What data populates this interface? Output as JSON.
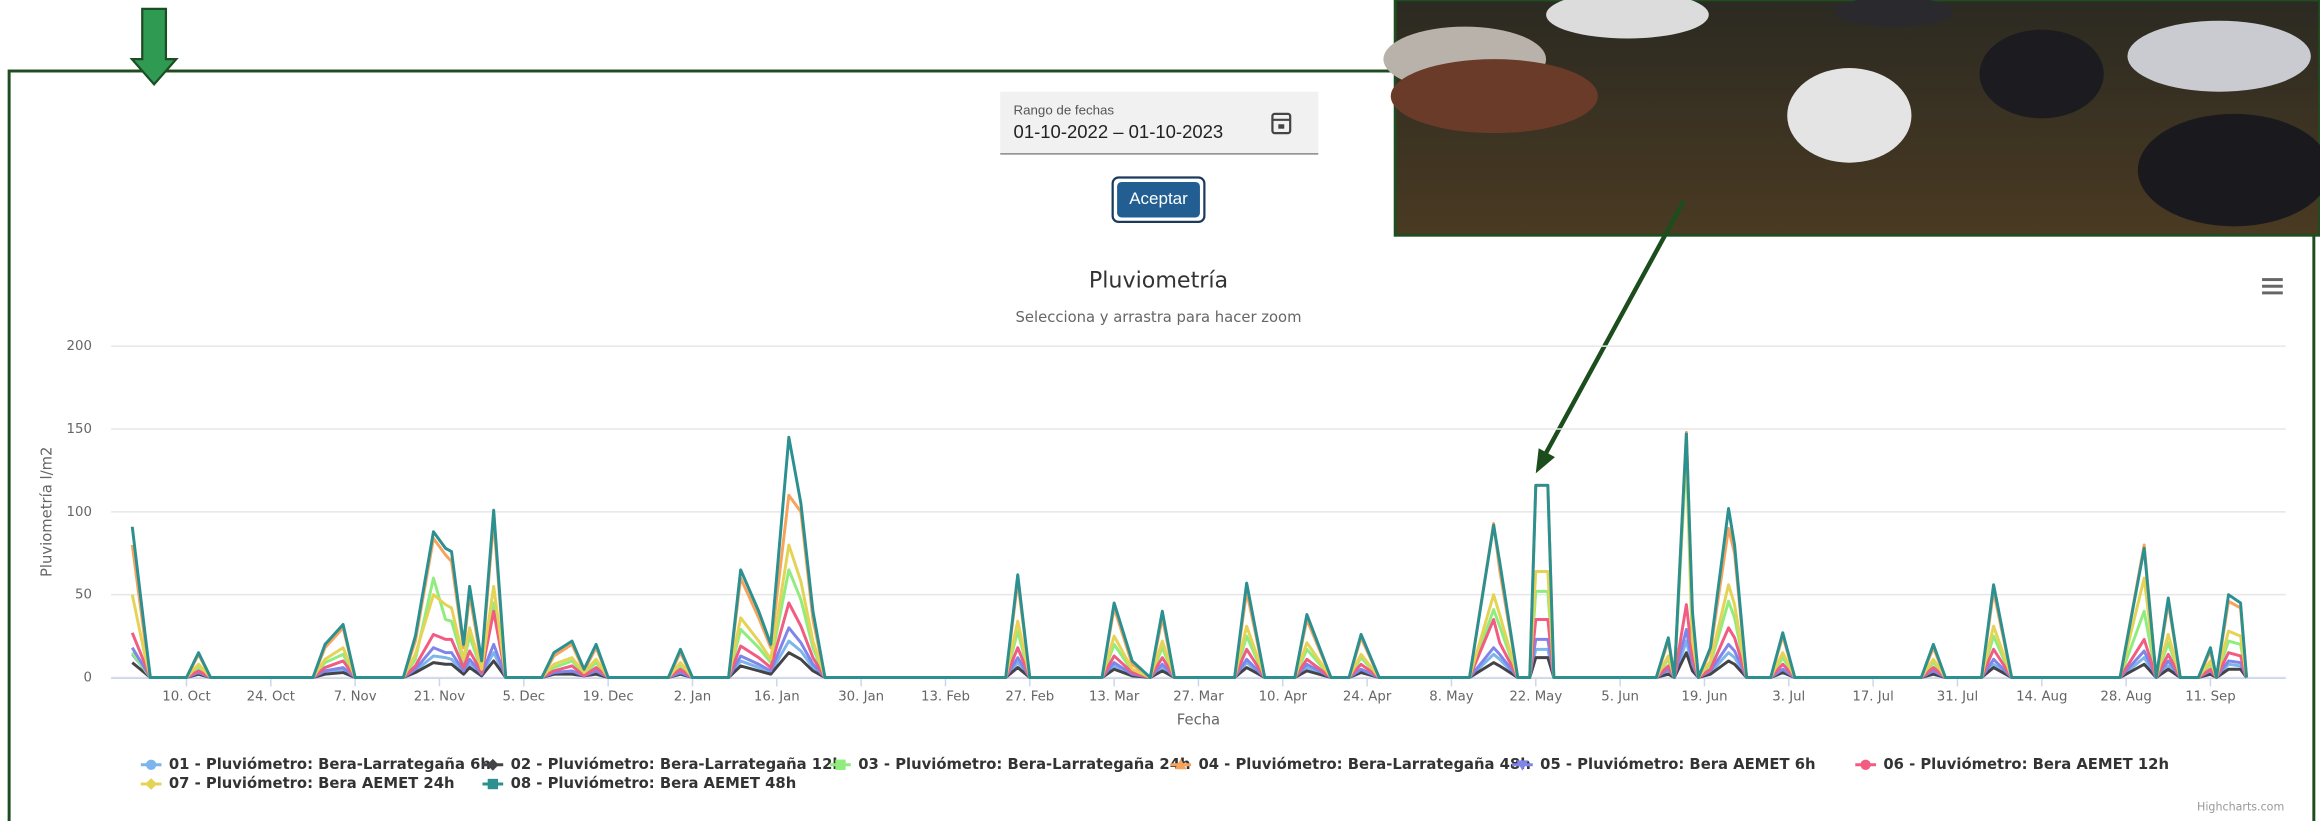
{
  "date_range": {
    "label": "Rango de fechas",
    "value": "01-10-2022 – 01-10-2023"
  },
  "button": "Aceptar",
  "credits": "Highcharts.com",
  "chart_data": {
    "type": "line",
    "title": "Pluviometría",
    "subtitle": "Selecciona y arrastra para hacer zoom",
    "y_axis_label": "Pluviometría l/m2",
    "x_axis_label": "Fecha",
    "xlim": [
      -3.5,
      357.5
    ],
    "xticks": [
      {
        "value": 9,
        "label": "10. Oct"
      },
      {
        "value": 23,
        "label": "24. Oct"
      },
      {
        "value": 37,
        "label": "7. Nov"
      },
      {
        "value": 51,
        "label": "21. Nov"
      },
      {
        "value": 65,
        "label": "5. Dec"
      },
      {
        "value": 79,
        "label": "19. Dec"
      },
      {
        "value": 93,
        "label": "2. Jan"
      },
      {
        "value": 107,
        "label": "16. Jan"
      },
      {
        "value": 121,
        "label": "30. Jan"
      },
      {
        "value": 135,
        "label": "13. Feb"
      },
      {
        "value": 149,
        "label": "27. Feb"
      },
      {
        "value": 163,
        "label": "13. Mar"
      },
      {
        "value": 177,
        "label": "27. Mar"
      },
      {
        "value": 191,
        "label": "10. Apr"
      },
      {
        "value": 205,
        "label": "24. Apr"
      },
      {
        "value": 219,
        "label": "8. May"
      },
      {
        "value": 233,
        "label": "22. May"
      },
      {
        "value": 247,
        "label": "5. Jun"
      },
      {
        "value": 261,
        "label": "19. Jun"
      },
      {
        "value": 275,
        "label": "3. Jul"
      },
      {
        "value": 289,
        "label": "17. Jul"
      },
      {
        "value": 303,
        "label": "31. Jul"
      },
      {
        "value": 317,
        "label": "14. Aug"
      },
      {
        "value": 331,
        "label": "28. Aug"
      },
      {
        "value": 345,
        "label": "11. Sep"
      }
    ],
    "ylim": [
      0,
      200
    ],
    "yticks": [
      0,
      50,
      100,
      150,
      200
    ],
    "grid": true,
    "legend": "bottom",
    "x": [
      0,
      2,
      3,
      9,
      11,
      13,
      30,
      32,
      35,
      37,
      45,
      47,
      50,
      52,
      53,
      55,
      56,
      58,
      60,
      62,
      68,
      70,
      73,
      75,
      77,
      79,
      89,
      91,
      93,
      99,
      101,
      104,
      106,
      109,
      111,
      113,
      115,
      145,
      147,
      149,
      161,
      163,
      166,
      169,
      171,
      173,
      183,
      185,
      188,
      193,
      195,
      199,
      202,
      204,
      207,
      222,
      226,
      227,
      230,
      232,
      233,
      235,
      236,
      253,
      255,
      256,
      258,
      259,
      260,
      262,
      265,
      266,
      268,
      272,
      274,
      276,
      297,
      299,
      301,
      307,
      309,
      312,
      330,
      334,
      336,
      338,
      340,
      343,
      345,
      346,
      348,
      350,
      351
    ],
    "series": [
      {
        "name": "01 - Pluviómetro: Bera-Larrategaña 6h",
        "color": "#7cb5ec",
        "values": [
          14,
          5,
          0,
          0,
          2,
          0,
          0,
          3,
          5,
          0,
          0,
          4,
          13,
          12,
          11,
          3,
          8,
          2,
          15,
          0,
          0,
          2,
          3,
          1,
          3,
          0,
          0,
          3,
          0,
          0,
          10,
          6,
          3,
          22,
          16,
          6,
          0,
          0,
          9,
          0,
          0,
          7,
          2,
          0,
          6,
          0,
          0,
          9,
          0,
          0,
          6,
          0,
          0,
          4,
          0,
          0,
          14,
          11,
          0,
          0,
          17,
          17,
          0,
          0,
          4,
          0,
          22,
          6,
          0,
          3,
          15,
          12,
          0,
          0,
          4,
          0,
          0,
          3,
          0,
          0,
          8,
          0,
          0,
          12,
          0,
          7,
          0,
          0,
          3,
          0,
          8,
          7,
          0
        ]
      },
      {
        "name": "02 - Pluviómetro: Bera-Larrategaña 12h",
        "color": "#434348",
        "values": [
          9,
          3,
          0,
          0,
          2,
          0,
          0,
          2,
          3,
          0,
          0,
          3,
          9,
          8,
          8,
          2,
          6,
          1,
          10,
          0,
          0,
          2,
          2,
          1,
          2,
          0,
          0,
          2,
          0,
          0,
          7,
          4,
          2,
          15,
          11,
          4,
          0,
          0,
          6,
          0,
          0,
          5,
          1,
          0,
          4,
          0,
          0,
          6,
          0,
          0,
          4,
          0,
          0,
          3,
          0,
          0,
          9,
          7,
          0,
          0,
          12,
          12,
          0,
          0,
          2,
          0,
          15,
          4,
          0,
          2,
          10,
          8,
          0,
          0,
          3,
          0,
          0,
          2,
          0,
          0,
          6,
          0,
          0,
          8,
          0,
          5,
          0,
          0,
          2,
          0,
          5,
          5,
          0
        ]
      },
      {
        "name": "03 - Pluviómetro: Bera-Larrategaña 24h",
        "color": "#90ed7d",
        "values": [
          15,
          5,
          0,
          0,
          6,
          0,
          0,
          9,
          14,
          0,
          0,
          11,
          60,
          35,
          34,
          9,
          25,
          4,
          45,
          0,
          0,
          6,
          10,
          2,
          9,
          0,
          0,
          7,
          0,
          0,
          29,
          18,
          9,
          65,
          47,
          18,
          0,
          0,
          28,
          0,
          0,
          20,
          4,
          0,
          18,
          0,
          0,
          25,
          0,
          0,
          17,
          0,
          0,
          12,
          0,
          0,
          41,
          31,
          0,
          0,
          52,
          52,
          0,
          0,
          11,
          0,
          135,
          18,
          0,
          8,
          46,
          36,
          0,
          0,
          12,
          0,
          0,
          9,
          0,
          0,
          25,
          0,
          0,
          40,
          0,
          21,
          0,
          0,
          8,
          0,
          22,
          20,
          0
        ]
      },
      {
        "name": "04 - Pluviómetro: Bera-Larrategaña 48h",
        "color": "#f7a35c",
        "values": [
          80,
          25,
          0,
          0,
          14,
          0,
          0,
          18,
          30,
          0,
          0,
          22,
          84,
          74,
          70,
          18,
          50,
          8,
          95,
          0,
          0,
          13,
          20,
          4,
          18,
          0,
          0,
          15,
          0,
          0,
          60,
          36,
          18,
          110,
          100,
          35,
          0,
          0,
          58,
          0,
          0,
          42,
          8,
          0,
          36,
          0,
          0,
          52,
          0,
          0,
          35,
          0,
          0,
          24,
          0,
          0,
          93,
          65,
          0,
          0,
          116,
          116,
          0,
          0,
          22,
          0,
          148,
          38,
          0,
          16,
          90,
          75,
          0,
          0,
          25,
          0,
          0,
          18,
          0,
          0,
          52,
          0,
          0,
          80,
          0,
          45,
          0,
          0,
          16,
          0,
          46,
          42,
          0
        ]
      },
      {
        "name": "05 - Pluviómetro: Bera AEMET 6h",
        "color": "#8085e9",
        "values": [
          18,
          6,
          0,
          0,
          3,
          0,
          0,
          4,
          6,
          0,
          0,
          5,
          18,
          15,
          15,
          4,
          11,
          2,
          20,
          0,
          0,
          3,
          4,
          1,
          4,
          0,
          0,
          3,
          0,
          0,
          13,
          8,
          4,
          30,
          21,
          8,
          0,
          0,
          12,
          0,
          0,
          9,
          2,
          0,
          8,
          0,
          0,
          11,
          0,
          0,
          8,
          0,
          0,
          5,
          0,
          0,
          18,
          14,
          0,
          0,
          23,
          23,
          0,
          0,
          5,
          0,
          29,
          8,
          0,
          4,
          20,
          16,
          0,
          0,
          5,
          0,
          0,
          4,
          0,
          0,
          11,
          0,
          0,
          16,
          0,
          10,
          0,
          0,
          4,
          0,
          10,
          9,
          0
        ]
      },
      {
        "name": "06 - Pluviómetro: Bera AEMET 12h",
        "color": "#f15c80",
        "values": [
          27,
          9,
          0,
          0,
          4,
          0,
          0,
          6,
          10,
          0,
          0,
          7,
          26,
          23,
          23,
          6,
          16,
          3,
          40,
          0,
          0,
          4,
          7,
          1,
          6,
          0,
          0,
          5,
          0,
          0,
          19,
          12,
          6,
          45,
          31,
          12,
          0,
          0,
          18,
          0,
          0,
          13,
          3,
          0,
          12,
          0,
          0,
          17,
          0,
          0,
          11,
          0,
          0,
          8,
          0,
          0,
          35,
          21,
          0,
          0,
          35,
          35,
          0,
          0,
          7,
          0,
          44,
          12,
          0,
          5,
          30,
          24,
          0,
          0,
          8,
          0,
          0,
          6,
          0,
          0,
          17,
          0,
          0,
          23,
          0,
          14,
          0,
          0,
          5,
          0,
          15,
          13,
          0
        ]
      },
      {
        "name": "07 - Pluviómetro: Bera AEMET 24h",
        "color": "#e4d354",
        "values": [
          50,
          15,
          0,
          0,
          8,
          0,
          0,
          11,
          18,
          0,
          0,
          14,
          50,
          44,
          42,
          11,
          30,
          5,
          55,
          0,
          0,
          8,
          12,
          3,
          11,
          0,
          0,
          9,
          0,
          0,
          36,
          22,
          11,
          80,
          58,
          22,
          0,
          0,
          34,
          0,
          0,
          25,
          5,
          0,
          22,
          0,
          0,
          31,
          0,
          0,
          21,
          0,
          0,
          14,
          0,
          0,
          50,
          38,
          0,
          0,
          64,
          64,
          0,
          0,
          13,
          0,
          140,
          22,
          0,
          10,
          56,
          44,
          0,
          0,
          15,
          0,
          0,
          11,
          0,
          0,
          31,
          0,
          0,
          60,
          0,
          26,
          0,
          0,
          10,
          0,
          28,
          25,
          0
        ]
      },
      {
        "name": "08 - Pluviómetro: Bera AEMET 48h",
        "color": "#2b908f",
        "values": [
          91,
          30,
          0,
          0,
          15,
          0,
          0,
          20,
          32,
          0,
          0,
          25,
          88,
          78,
          76,
          20,
          55,
          10,
          101,
          0,
          0,
          15,
          22,
          5,
          20,
          0,
          0,
          17,
          0,
          0,
          65,
          40,
          20,
          145,
          105,
          40,
          0,
          0,
          62,
          0,
          0,
          45,
          10,
          0,
          40,
          0,
          0,
          57,
          0,
          0,
          38,
          0,
          0,
          26,
          0,
          0,
          92,
          70,
          0,
          0,
          116,
          116,
          0,
          0,
          24,
          0,
          147,
          40,
          0,
          18,
          102,
          80,
          0,
          0,
          27,
          0,
          0,
          20,
          0,
          0,
          56,
          0,
          0,
          78,
          0,
          48,
          0,
          0,
          18,
          0,
          50,
          45,
          0
        ]
      }
    ]
  }
}
